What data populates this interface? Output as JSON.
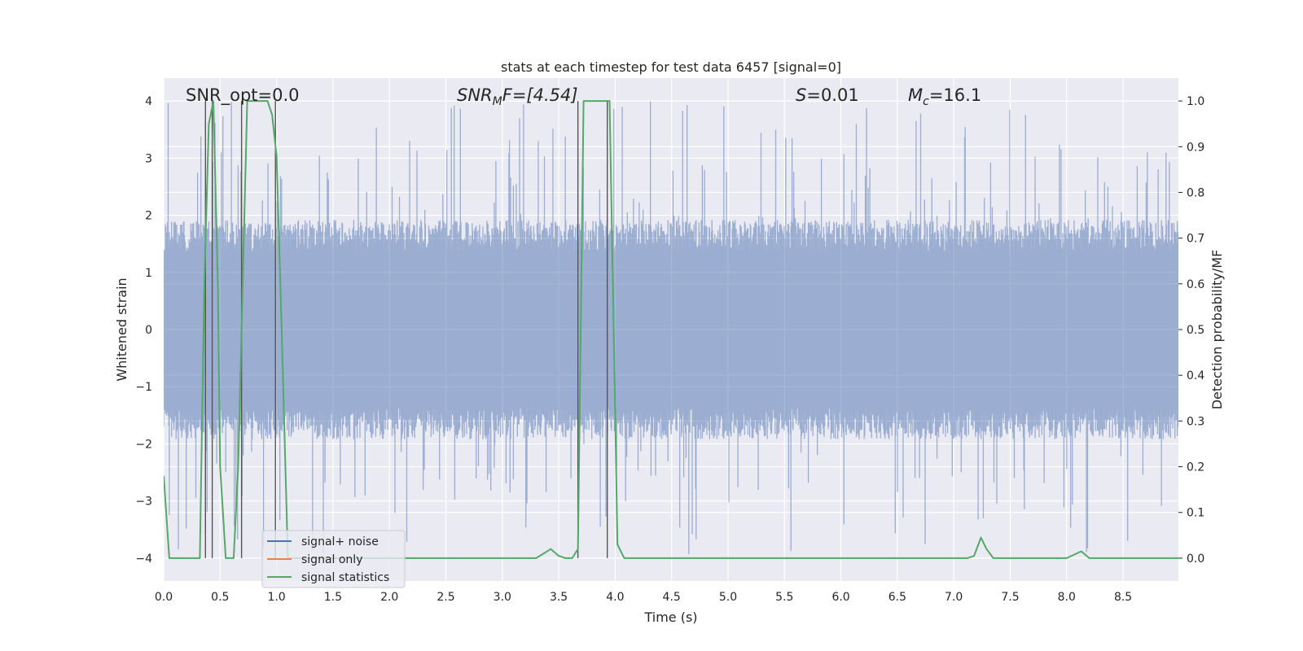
{
  "chart_data": {
    "type": "line",
    "title": "stats at each timestep for test data 6457 [signal=0]",
    "xlabel": "Time (s)",
    "ylabel_left": "Whitened strain",
    "ylabel_right": "Detection probability/MF",
    "xlim": [
      0.0,
      8.99
    ],
    "ylim_left": [
      -4.4,
      4.4
    ],
    "ylim_right": [
      -0.05,
      1.05
    ],
    "x_ticks": [
      "0.0",
      "0.5",
      "1.0",
      "1.5",
      "2.0",
      "2.5",
      "3.0",
      "3.5",
      "4.0",
      "4.5",
      "5.0",
      "5.5",
      "6.0",
      "6.5",
      "7.0",
      "7.5",
      "8.0",
      "8.5"
    ],
    "y_ticks_left": [
      "−4",
      "−3",
      "−2",
      "−1",
      "0",
      "1",
      "2",
      "3",
      "4"
    ],
    "y_ticks_right": [
      "0.0",
      "0.1",
      "0.2",
      "0.3",
      "0.4",
      "0.5",
      "0.6",
      "0.7",
      "0.8",
      "0.9",
      "1.0"
    ],
    "grid": true,
    "legend_position": "lower-left",
    "legend": [
      {
        "label": "signal+ noise",
        "color": "#4c72b0"
      },
      {
        "label": "signal only",
        "color": "#dd8452"
      },
      {
        "label": "signal statistics",
        "color": "#55a868"
      }
    ],
    "annotations": {
      "snr_opt": "SNR_opt=0.0",
      "snr_mf_main": "SNR",
      "snr_mf_sub": "M",
      "snr_mf_rest": "F=[4.54]",
      "s_var": "S",
      "s_val": "=0.01",
      "mc_var": "M",
      "mc_sub": "c",
      "mc_val": "=16.1"
    },
    "series": [
      {
        "name": "signal+ noise",
        "kind": "strain",
        "color": "#4c72b0",
        "x_range": [
          0.0,
          8.99
        ],
        "typical_amplitude": 1.6,
        "max_amplitude": 4.0
      },
      {
        "name": "signal statistics",
        "color": "#55a868",
        "axis": "right",
        "x": [
          0.0,
          0.05,
          0.1,
          0.2,
          0.3,
          0.32,
          0.36,
          0.4,
          0.44,
          0.48,
          0.5,
          0.55,
          0.62,
          0.66,
          0.7,
          0.74,
          0.8,
          0.92,
          0.96,
          1.0,
          1.04,
          1.1,
          3.3,
          3.43,
          3.5,
          3.56,
          3.62,
          3.67,
          3.72,
          3.78,
          3.87,
          3.95,
          3.98,
          4.02,
          4.08,
          7.12,
          7.18,
          7.24,
          7.29,
          7.35,
          8.0,
          8.13,
          8.2,
          8.99
        ],
        "values": [
          0.18,
          0.0,
          0.0,
          0.0,
          0.0,
          0.0,
          0.6,
          0.95,
          1.0,
          0.6,
          0.2,
          0.0,
          0.0,
          0.2,
          0.6,
          1.0,
          1.0,
          1.0,
          0.97,
          0.88,
          0.55,
          0.0,
          0.0,
          0.02,
          0.005,
          0.0,
          0.0,
          0.02,
          1.0,
          1.0,
          1.0,
          1.0,
          0.6,
          0.03,
          0.0,
          0.0,
          0.005,
          0.045,
          0.02,
          0.0,
          0.0,
          0.015,
          0.0,
          0.0
        ]
      }
    ],
    "vertical_markers": [
      0.37,
      0.43,
      0.69,
      0.99,
      3.67,
      3.93
    ]
  }
}
